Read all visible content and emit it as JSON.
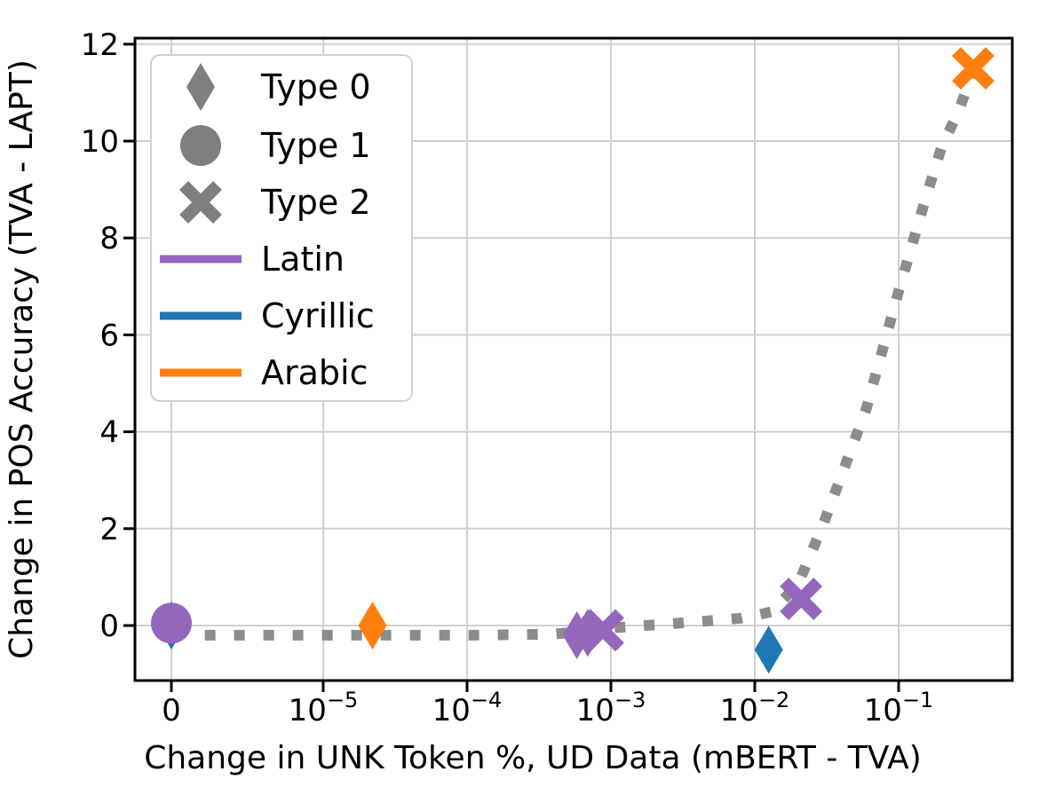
{
  "chart_data": {
    "type": "scatter",
    "title": "",
    "xlabel": "Change in UNK Token %, UD Data (mBERT - TVA)",
    "ylabel": "Change in POS Accuracy (TVA - LAPT)",
    "x_scale": "symlog",
    "x_linthresh": 1e-05,
    "x_tick_values": [
      0,
      1e-05,
      0.0001,
      0.001,
      0.01,
      0.1
    ],
    "x_tick_labels": [
      {
        "main": "0",
        "sup": ""
      },
      {
        "main": "10",
        "sup": "−5"
      },
      {
        "main": "10",
        "sup": "−4"
      },
      {
        "main": "10",
        "sup": "−3"
      },
      {
        "main": "10",
        "sup": "−2"
      },
      {
        "main": "10",
        "sup": "−1"
      }
    ],
    "y_tick_values": [
      0,
      2,
      4,
      6,
      8,
      10,
      12
    ],
    "ylim": [
      -1.14,
      12.12
    ],
    "grid": true,
    "legend_position": "upper-left",
    "colors": {
      "Latin": "#9467bd",
      "Cyrillic": "#1f77b4",
      "Arabic": "#ff7f0e",
      "legend_marker_gray": "#7f7f7f",
      "trend_gray": "#8c8c8c",
      "grid_gray": "#d0d0d0",
      "spine_black": "#000000"
    },
    "legend": {
      "items": [
        {
          "kind": "marker",
          "marker": "diamond",
          "label": "Type 0"
        },
        {
          "kind": "marker",
          "marker": "circle",
          "label": "Type 1"
        },
        {
          "kind": "marker",
          "marker": "x",
          "label": "Type 2"
        },
        {
          "kind": "line",
          "script": "Latin",
          "label": "Latin"
        },
        {
          "kind": "line",
          "script": "Cyrillic",
          "label": "Cyrillic"
        },
        {
          "kind": "line",
          "script": "Arabic",
          "label": "Arabic"
        }
      ]
    },
    "points": [
      {
        "script": "Cyrillic",
        "type": 0,
        "x": 0,
        "y": 0.0
      },
      {
        "script": "Latin",
        "type": 1,
        "x": 0,
        "y": 0.05
      },
      {
        "script": "Arabic",
        "type": 0,
        "x": 2.2e-05,
        "y": 0.0
      },
      {
        "script": "Latin",
        "type": 0,
        "x": 0.00058,
        "y": -0.2
      },
      {
        "script": "Latin",
        "type": 0,
        "x": 0.00069,
        "y": -0.15
      },
      {
        "script": "Latin",
        "type": 2,
        "x": 0.00088,
        "y": -0.1
      },
      {
        "script": "Cyrillic",
        "type": 0,
        "x": 0.0125,
        "y": -0.5
      },
      {
        "script": "Latin",
        "type": 2,
        "x": 0.021,
        "y": 0.55
      },
      {
        "script": "Arabic",
        "type": 2,
        "x": 0.33,
        "y": 11.5
      }
    ],
    "trend_line": [
      [
        2.2e-06,
        -0.2
      ],
      [
        1e-05,
        -0.2
      ],
      [
        0.0001,
        -0.2
      ],
      [
        0.0004,
        -0.18
      ],
      [
        0.001,
        -0.05
      ],
      [
        0.003,
        0.05
      ],
      [
        0.008,
        0.15
      ],
      [
        0.013,
        0.28
      ],
      [
        0.02,
        0.85
      ],
      [
        0.03,
        2.1
      ],
      [
        0.045,
        3.5
      ],
      [
        0.06,
        4.5
      ],
      [
        0.1,
        6.9
      ],
      [
        0.15,
        8.7
      ],
      [
        0.2,
        9.9
      ],
      [
        0.26,
        10.6
      ],
      [
        0.33,
        11.45
      ]
    ]
  }
}
